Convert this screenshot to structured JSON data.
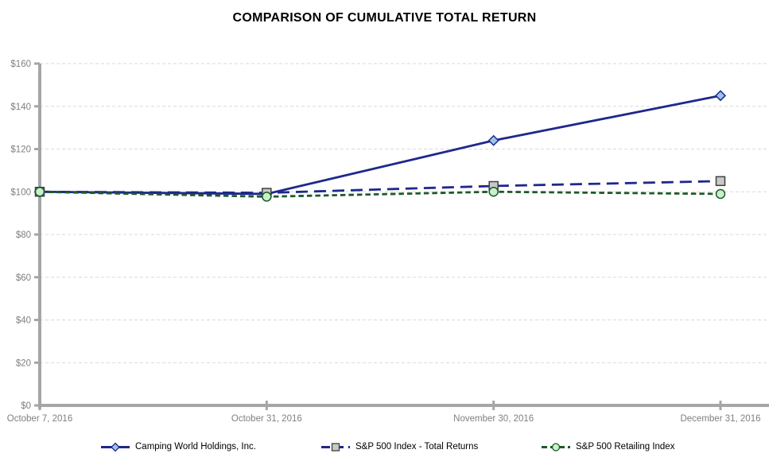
{
  "title": "COMPARISON OF CUMULATIVE TOTAL RETURN",
  "colors": {
    "navy": "#1E288C",
    "diamond_fill": "#9CC2EA",
    "dark_green": "#1E5A28",
    "circle_fill": "#C8F0CD",
    "square_fill": "#C8C8C8",
    "square_border": "#404040",
    "axis_gray": "#A6A6A6",
    "gridline_gray": "#D9D9D9",
    "tick_label_gray": "#7F7F7F"
  },
  "chart_data": {
    "type": "line",
    "title": "COMPARISON OF CUMULATIVE TOTAL RETURN",
    "categories": [
      "October 7, 2016",
      "October 31, 2016",
      "November 30, 2016",
      "December 31, 2016"
    ],
    "series": [
      {
        "name": "Camping World Holdings, Inc.",
        "values": [
          100,
          99,
          124,
          145
        ],
        "color": "#1E288C",
        "line_style": "solid",
        "marker": "diamond",
        "marker_fill": "#9CC2EA",
        "marker_border": "#1E288C"
      },
      {
        "name": "S&P 500 Index - Total Returns",
        "values": [
          100,
          99.5,
          102.7,
          105
        ],
        "color": "#1E288C",
        "line_style": "long-dash",
        "marker": "square",
        "marker_fill": "#C8C8C8",
        "marker_border": "#404040"
      },
      {
        "name": "S&P 500 Retailing Index",
        "values": [
          100,
          97.7,
          100,
          99
        ],
        "color": "#1E5A28",
        "line_style": "short-dash",
        "marker": "circle",
        "marker_fill": "#C8F0CD",
        "marker_border": "#1E5A28"
      }
    ],
    "xlabel": "",
    "ylabel": "",
    "ylim": [
      0,
      160
    ],
    "ytick_step": 20,
    "ytick_labels": [
      "$0",
      "$20",
      "$40",
      "$60",
      "$80",
      "$100",
      "$120",
      "$140",
      "$160"
    ],
    "grid": true,
    "legend_position": "bottom"
  }
}
